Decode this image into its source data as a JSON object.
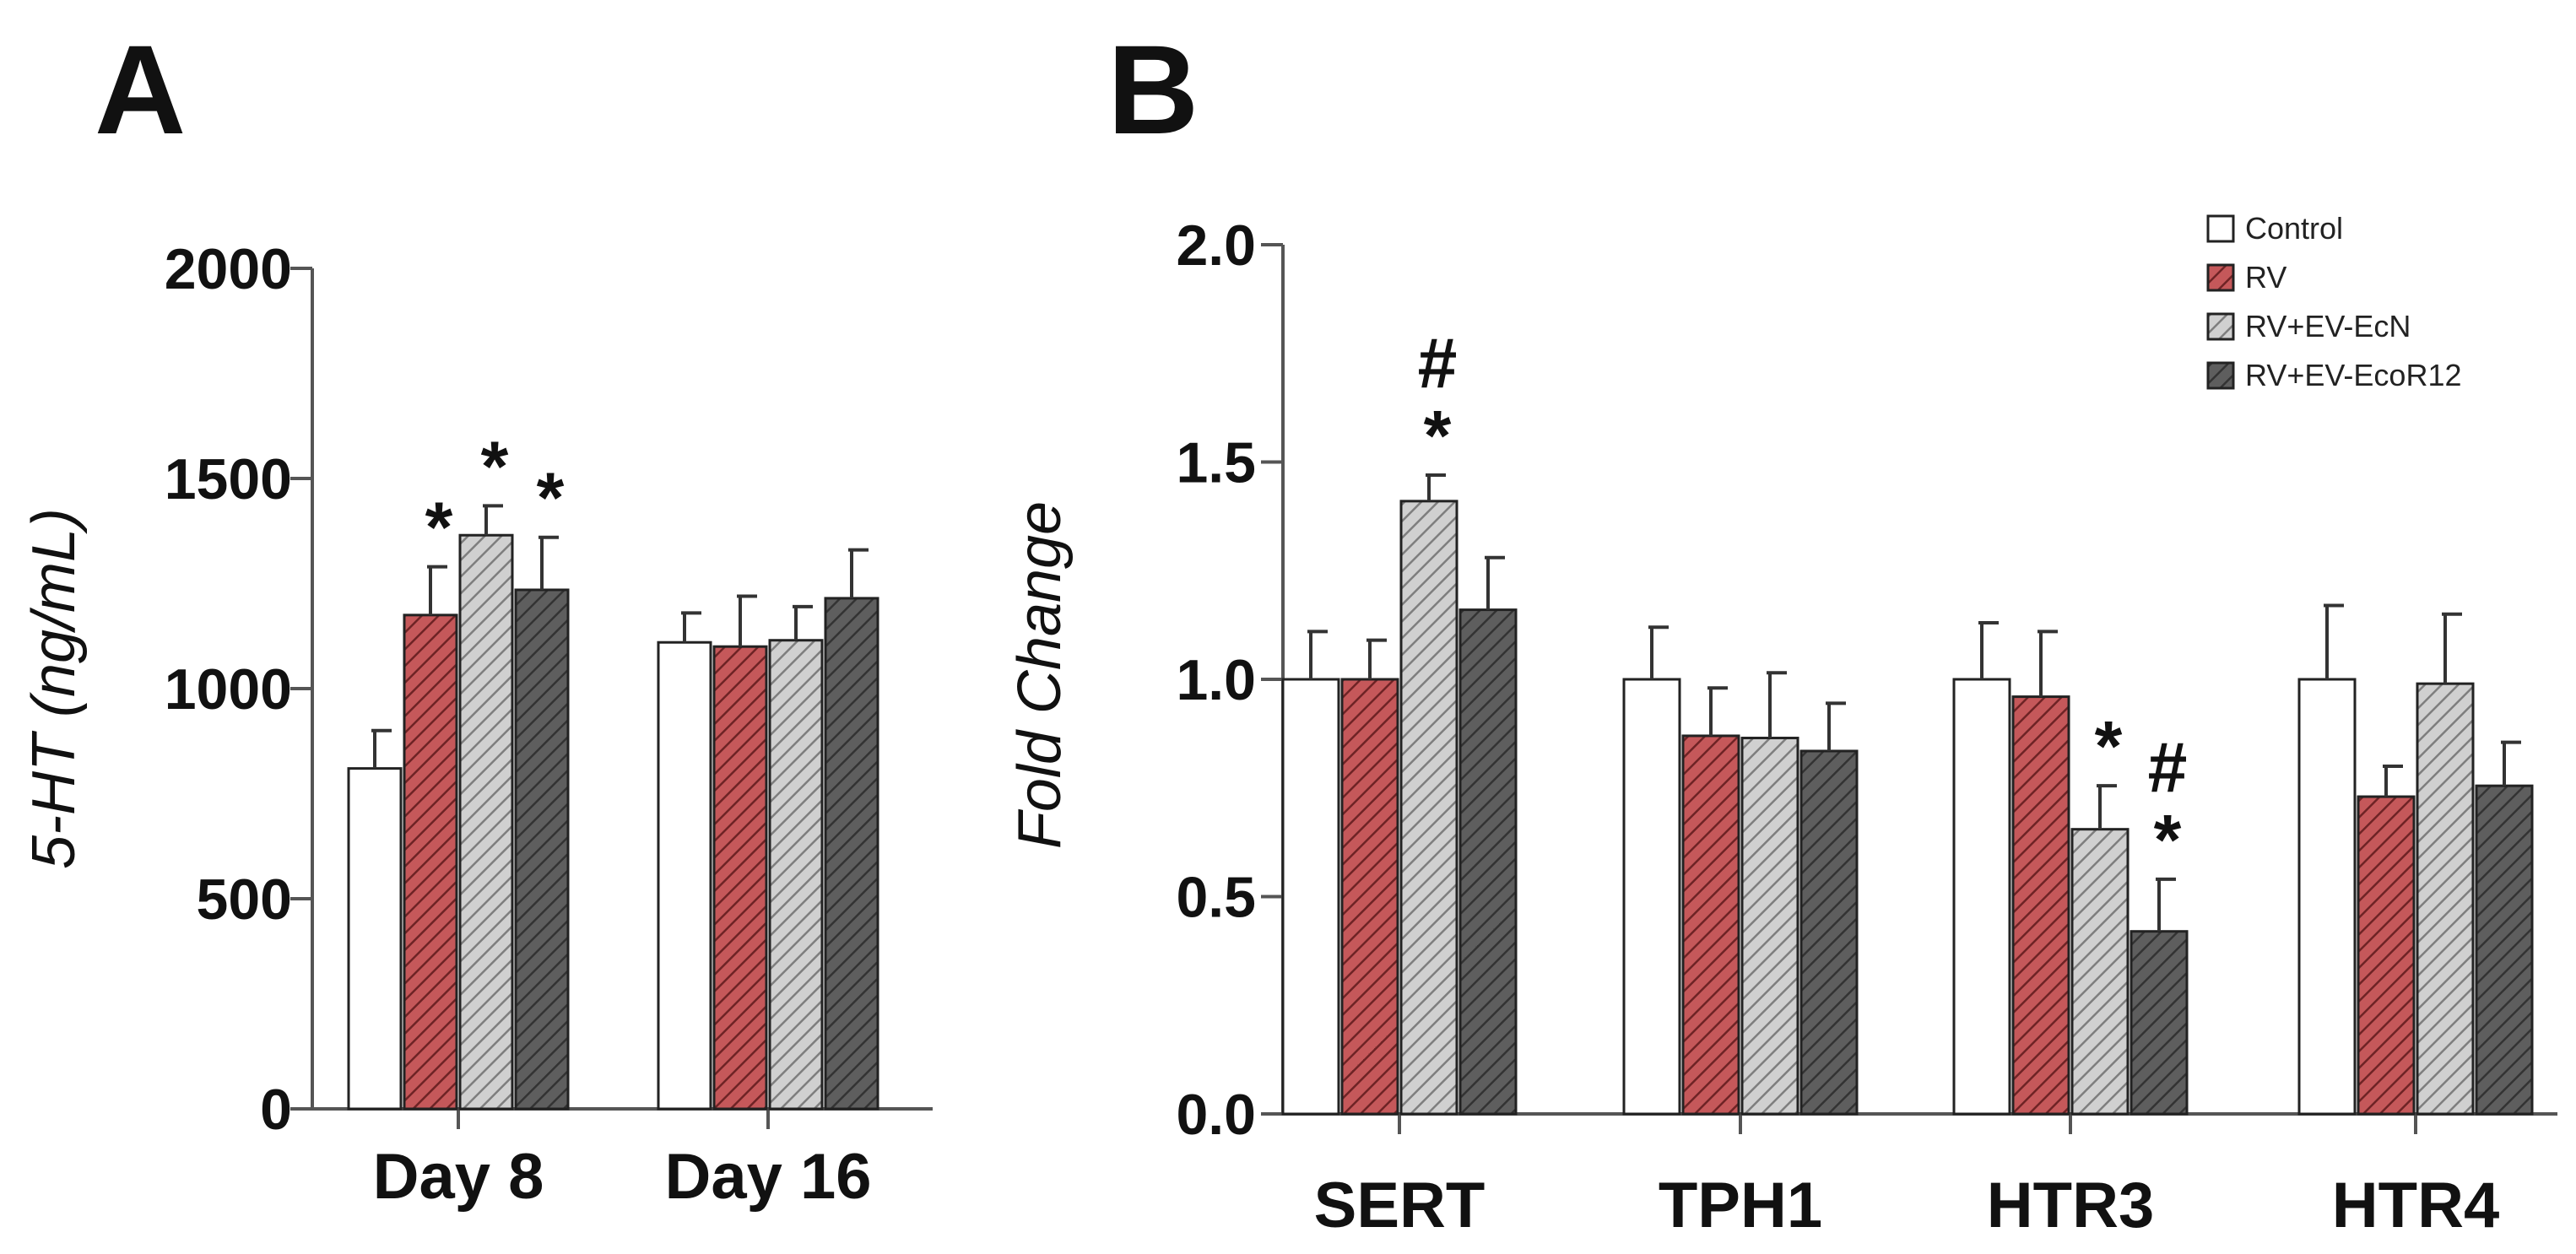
{
  "figure": {
    "series_names": [
      "Control",
      "RV",
      "RV+EV-EcN",
      "RV+EV-EcoR12"
    ],
    "series_styles": [
      {
        "fill": "#ffffff",
        "hatch": "none",
        "stroke": "#222222"
      },
      {
        "fill": "#c5585a",
        "hatch": "#6e2325",
        "stroke": "#222222"
      },
      {
        "fill": "#d0d0d0",
        "hatch": "#7e7e7e",
        "stroke": "#222222"
      },
      {
        "fill": "#5e5e5e",
        "hatch": "#333333",
        "stroke": "#222222"
      }
    ]
  },
  "chart_data": [
    {
      "panel": "A",
      "type": "bar",
      "title": "",
      "ylabel": "5-HT (ng/mL)",
      "ylim": [
        0,
        2000
      ],
      "yticks": [
        "0",
        "500",
        "1000",
        "1500",
        "2000"
      ],
      "ytick_values": [
        0,
        500,
        1000,
        1500,
        2000
      ],
      "categories": [
        "Day 8",
        "Day 16"
      ],
      "series": [
        {
          "name": "Control",
          "values": [
            810,
            1110
          ],
          "errors": [
            90,
            70
          ]
        },
        {
          "name": "RV",
          "values": [
            1175,
            1100
          ],
          "errors": [
            115,
            120
          ]
        },
        {
          "name": "RV+EV-EcN",
          "values": [
            1365,
            1115
          ],
          "errors": [
            70,
            80
          ]
        },
        {
          "name": "RV+EV-EcoR12",
          "values": [
            1235,
            1215
          ],
          "errors": [
            125,
            115
          ]
        }
      ],
      "annotations": [
        {
          "category": 0,
          "series": 1,
          "text": "*"
        },
        {
          "category": 0,
          "series": 2,
          "text": "*"
        },
        {
          "category": 0,
          "series": 3,
          "text": "*"
        }
      ]
    },
    {
      "panel": "B",
      "type": "bar",
      "title": "",
      "ylabel": "Fold Change",
      "ylim": [
        0,
        2.0
      ],
      "yticks": [
        "0.0",
        "0.5",
        "1.0",
        "1.5",
        "2.0"
      ],
      "ytick_values": [
        0,
        0.5,
        1.0,
        1.5,
        2.0
      ],
      "categories": [
        "SERT",
        "TPH1",
        "HTR3",
        "HTR4"
      ],
      "series": [
        {
          "name": "Control",
          "values": [
            1.0,
            1.0,
            1.0,
            1.0
          ],
          "errors": [
            0.11,
            0.12,
            0.13,
            0.17
          ]
        },
        {
          "name": "RV",
          "values": [
            1.0,
            0.87,
            0.96,
            0.73
          ],
          "errors": [
            0.09,
            0.11,
            0.15,
            0.07
          ]
        },
        {
          "name": "RV+EV-EcN",
          "values": [
            1.41,
            0.865,
            0.655,
            0.99
          ],
          "errors": [
            0.06,
            0.15,
            0.1,
            0.16
          ]
        },
        {
          "name": "RV+EV-EcoR12",
          "values": [
            1.16,
            0.835,
            0.42,
            0.755
          ],
          "errors": [
            0.12,
            0.11,
            0.12,
            0.1
          ]
        }
      ],
      "annotations": [
        {
          "category": 0,
          "series": 2,
          "text": "*"
        },
        {
          "category": 0,
          "series": 2,
          "text": "#"
        },
        {
          "category": 2,
          "series": 2,
          "text": "*"
        },
        {
          "category": 2,
          "series": 3,
          "text": "*"
        },
        {
          "category": 2,
          "series": 3,
          "text": "#"
        }
      ],
      "legend": [
        "Control",
        "RV",
        "RV+EV-EcN",
        "RV+EV-EcoR12"
      ],
      "legend_position": "top-right"
    }
  ]
}
